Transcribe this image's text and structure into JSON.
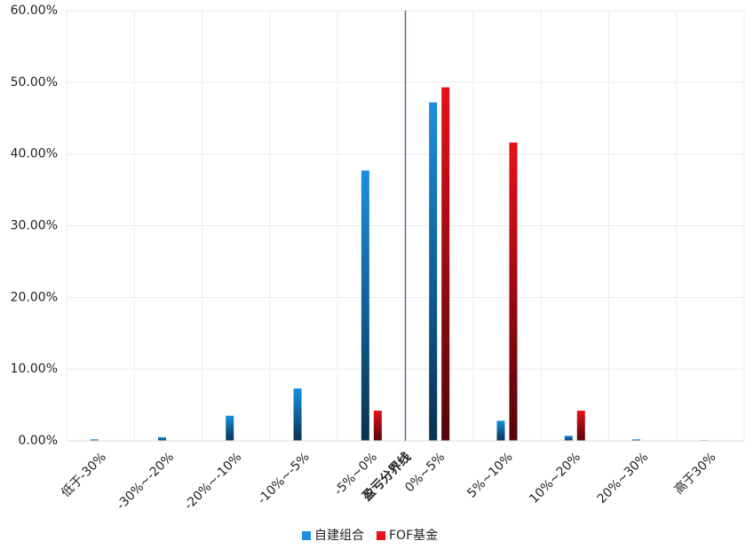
{
  "chart_data": {
    "type": "bar",
    "categories": [
      "低于-30%",
      "-30%~-20%",
      "-20%~-10%",
      "-10%~-5%",
      "-5%~0%",
      "0%~5%",
      "5%~10%",
      "10%~20%",
      "20%~30%",
      "高于30%"
    ],
    "series": [
      {
        "name": "自建组合",
        "color": "#1a8fe3",
        "values": [
          0.2,
          0.5,
          3.5,
          7.3,
          37.7,
          47.2,
          2.8,
          0.7,
          0.2,
          0.1
        ]
      },
      {
        "name": "FOF基金",
        "color": "#e8101a",
        "values": [
          0,
          0,
          0,
          0,
          4.2,
          49.3,
          41.6,
          4.2,
          0,
          0
        ]
      }
    ],
    "ylim": [
      0,
      60
    ],
    "yticks": [
      {
        "value": 0,
        "label": "0.00%"
      },
      {
        "value": 10,
        "label": "10.00%"
      },
      {
        "value": 20,
        "label": "20.00%"
      },
      {
        "value": 30,
        "label": "30.00%"
      },
      {
        "value": 40,
        "label": "40.00%"
      },
      {
        "value": 50,
        "label": "50.00%"
      },
      {
        "value": 60,
        "label": "60.00%"
      }
    ],
    "annotation": "盈亏分界线",
    "grid": true,
    "legend": "bottom"
  }
}
